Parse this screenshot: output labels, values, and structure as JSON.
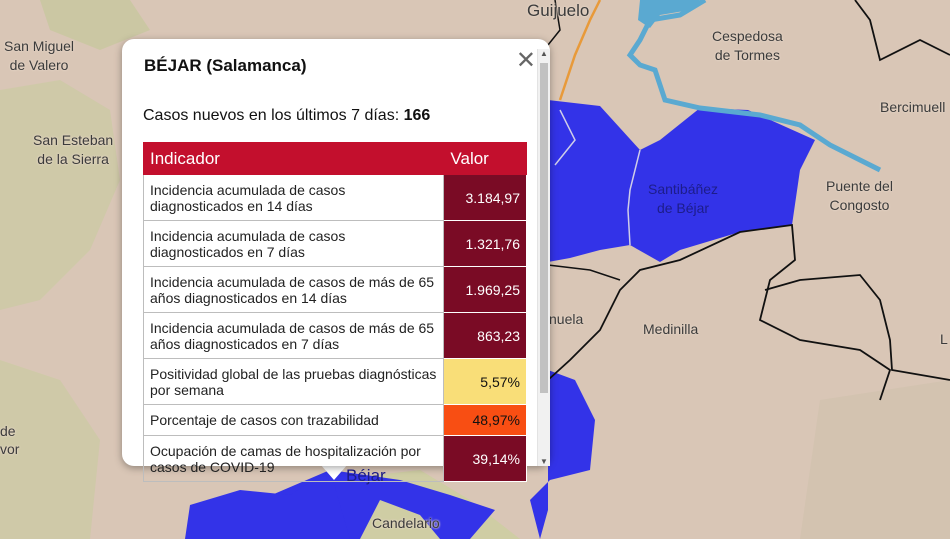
{
  "map": {
    "places": [
      {
        "id": "guijuelo",
        "text": "Guijuelo"
      },
      {
        "id": "san-miguel",
        "text": "San Miguel\nde Valero"
      },
      {
        "id": "cespedosa",
        "text": "Cespedosa\nde Tormes"
      },
      {
        "id": "bercimuelle",
        "text": "Bercimuell"
      },
      {
        "id": "san-esteban",
        "text": "San Esteban\nde la Sierra"
      },
      {
        "id": "santibanez",
        "text": "Santibáñez\nde Béjar"
      },
      {
        "id": "puente",
        "text": "Puente del\nCongosto"
      },
      {
        "id": "nuela",
        "text": "nuela"
      },
      {
        "id": "medinilla",
        "text": "Medinilla"
      },
      {
        "id": "de",
        "text": "de"
      },
      {
        "id": "vor",
        "text": "vor"
      },
      {
        "id": "l",
        "text": "L"
      },
      {
        "id": "bejar",
        "text": "Béjar"
      },
      {
        "id": "candelario",
        "text": "Candelario"
      }
    ],
    "colors": {
      "land": "#d9c6b6",
      "highlight": "#3333e6",
      "forest": "#c8c7a0",
      "river": "#5aa9d1",
      "road": "#e89a3a",
      "border": "#111111"
    }
  },
  "popup": {
    "title": "BÉJAR (Salamanca)",
    "cases_label": "Casos nuevos en los últimos 7 días: ",
    "cases_value": "166",
    "close_icon": "close-icon",
    "table": {
      "headers": [
        "Indicador",
        "Valor"
      ],
      "rows": [
        {
          "indicator": "Incidencia acumulada de casos diagnosticados en 14 días",
          "value": "3.184,97",
          "color": "#7a0b25"
        },
        {
          "indicator": "Incidencia acumulada de casos diagnosticados en 7 días",
          "value": "1.321,76",
          "color": "#7a0b25"
        },
        {
          "indicator": "Incidencia acumulada de casos de más de 65 años diagnosticados en 14 días",
          "value": "1.969,25",
          "color": "#7a0b25"
        },
        {
          "indicator": "Incidencia acumulada de casos de más de 65 años diagnosticados en 7 días",
          "value": "863,23",
          "color": "#7a0b25"
        },
        {
          "indicator": "Positividad global de las pruebas diagnósticas por semana",
          "value": "5,57%",
          "color": "#f9de78"
        },
        {
          "indicator": "Porcentaje de casos con trazabilidad",
          "value": "48,97%",
          "color": "#f84e13"
        },
        {
          "indicator": "Ocupación de camas de hospitalización por casos de COVID-19",
          "value": "39,14%",
          "color": "#7a0b25"
        }
      ]
    }
  }
}
